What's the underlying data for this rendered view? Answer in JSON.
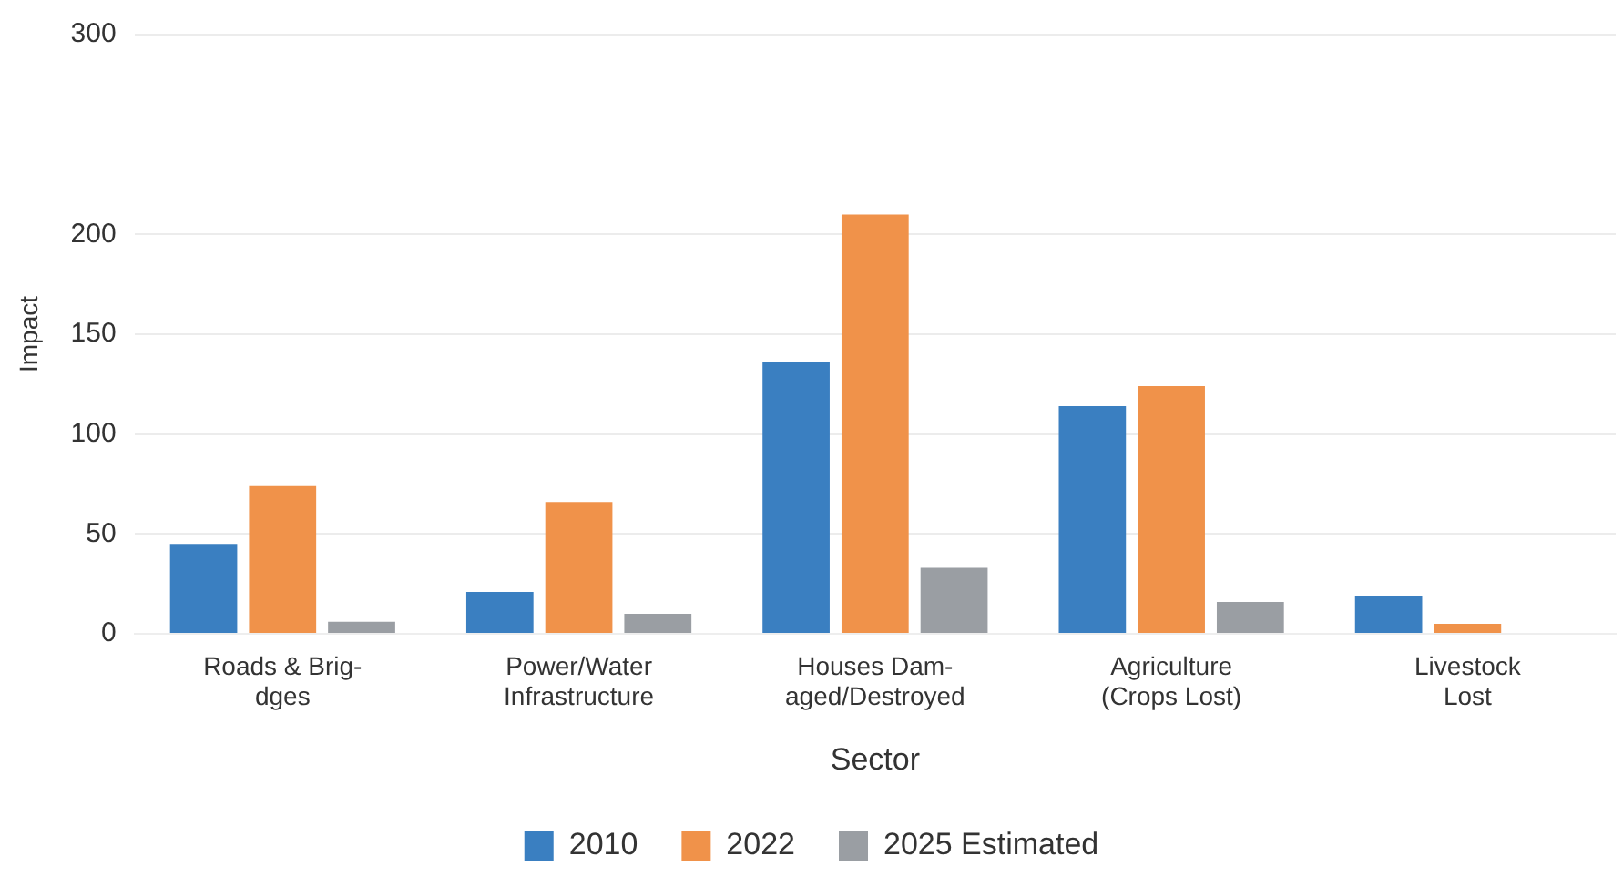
{
  "chart_data": {
    "type": "bar",
    "xlabel": "Sector",
    "ylabel": "Impact",
    "categories": [
      "Roads & Brig-\ndges",
      "Power/Water\nInfrastructure",
      "Houses Dam-\naged/Destroyed",
      "Agriculture\n(Crops Lost)",
      "Livestock\nLost"
    ],
    "series": [
      {
        "name": "2010",
        "color": "#3a7fc1",
        "values": [
          45,
          21,
          136,
          114,
          19
        ]
      },
      {
        "name": "2022",
        "color": "#f0924a",
        "values": [
          74,
          66,
          210,
          124,
          5
        ]
      },
      {
        "name": "2025 Estimated",
        "color": "#9a9ea3",
        "values": [
          6,
          10,
          33,
          16,
          null
        ]
      }
    ],
    "ylim": [
      0,
      300
    ],
    "yticks": [
      0,
      50,
      100,
      150,
      200,
      300
    ],
    "grid": "y",
    "legend": "bottom"
  }
}
